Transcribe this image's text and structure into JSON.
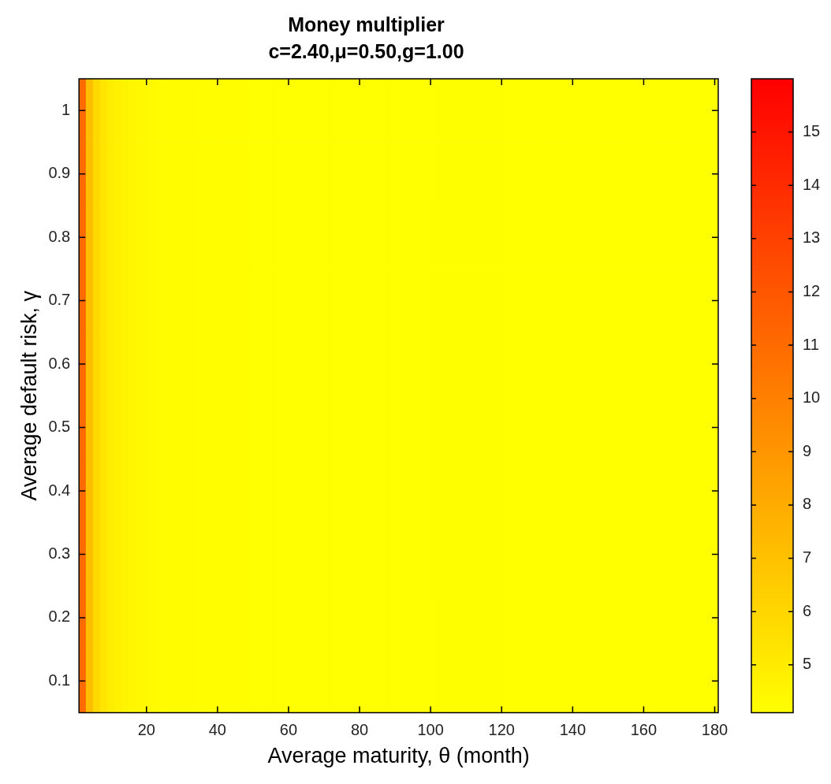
{
  "chart_data": {
    "type": "heatmap",
    "title": "Money multiplier",
    "subtitle": "c=2.40,μ=0.50,g=1.00",
    "xlabel": "Average maturity, θ (month)",
    "ylabel": "Average default risk, γ",
    "categories": [
      null,
      null,
      null,
      null,
      null,
      null,
      null,
      null,
      null,
      "20",
      null,
      null,
      null,
      null,
      null,
      null,
      null,
      null,
      null,
      "40",
      null,
      null,
      null,
      null,
      null,
      null,
      null,
      null,
      null,
      "60",
      null,
      null,
      null,
      null,
      null,
      null,
      null,
      null,
      null,
      "80",
      null,
      null,
      null,
      null,
      null,
      null,
      null,
      null,
      null,
      "100",
      null,
      null,
      null,
      null,
      null,
      null,
      null,
      null,
      null,
      "120",
      null,
      null,
      null,
      null,
      null,
      null,
      null,
      null,
      null,
      "140",
      null,
      null,
      null,
      null,
      null,
      null,
      null,
      null,
      null,
      "160",
      null,
      null,
      null,
      null,
      null,
      null,
      null,
      null,
      null,
      "180"
    ],
    "y_categories": [
      "1",
      "0.9",
      "0.8",
      "0.7",
      "0.6",
      "0.5",
      "0.4",
      "0.3",
      "0.2",
      "0.1"
    ],
    "cells": [
      [
        11,
        7.2,
        5.9,
        5.3,
        4.95,
        4.75,
        4.6,
        4.5,
        4.42,
        4.36,
        4.32,
        4.29,
        4.27,
        4.25,
        4.24,
        4.23,
        4.22,
        4.21,
        4.2,
        4.2,
        4.19,
        4.19,
        4.18,
        4.18,
        4.17,
        4.17,
        4.17,
        4.16,
        4.16,
        4.16,
        4.15,
        4.15,
        4.15,
        4.15,
        4.15,
        4.15,
        4.15,
        4.15,
        4.15,
        4.15,
        4.14,
        4.14,
        4.14,
        4.14,
        4.14,
        4.14,
        4.14,
        4.14,
        4.14,
        4.14,
        4.13,
        4.13,
        4.13,
        4.13,
        4.13,
        4.13,
        4.13,
        4.13,
        4.13,
        4.13,
        4.12,
        4.12,
        4.12,
        4.12,
        4.12,
        4.12,
        4.12,
        4.12,
        4.12,
        4.12,
        4.11,
        4.11,
        4.11,
        4.11,
        4.11,
        4.11,
        4.11,
        4.11,
        4.11,
        4.11,
        4.1,
        4.1,
        4.1,
        4.1,
        4.1,
        4.1,
        4.1,
        4.1,
        4.1,
        4.1
      ],
      [
        11,
        7.2,
        5.9,
        5.3,
        4.95,
        4.75,
        4.6,
        4.5,
        4.42,
        4.36,
        4.32,
        4.29,
        4.27,
        4.25,
        4.24,
        4.23,
        4.22,
        4.21,
        4.2,
        4.2,
        4.19,
        4.19,
        4.18,
        4.18,
        4.17,
        4.17,
        4.17,
        4.16,
        4.16,
        4.16,
        4.15,
        4.15,
        4.15,
        4.15,
        4.15,
        4.15,
        4.15,
        4.15,
        4.15,
        4.15,
        4.14,
        4.14,
        4.14,
        4.14,
        4.14,
        4.14,
        4.14,
        4.14,
        4.14,
        4.14,
        4.13,
        4.13,
        4.13,
        4.13,
        4.13,
        4.13,
        4.13,
        4.13,
        4.13,
        4.13,
        4.12,
        4.12,
        4.12,
        4.12,
        4.12,
        4.12,
        4.12,
        4.12,
        4.12,
        4.12,
        4.11,
        4.11,
        4.11,
        4.11,
        4.11,
        4.11,
        4.11,
        4.11,
        4.11,
        4.11,
        4.1,
        4.1,
        4.1,
        4.1,
        4.1,
        4.1,
        4.1,
        4.1,
        4.1,
        4.1
      ],
      [
        11,
        7.2,
        5.9,
        5.3,
        4.95,
        4.75,
        4.6,
        4.5,
        4.42,
        4.36,
        4.32,
        4.29,
        4.27,
        4.25,
        4.24,
        4.23,
        4.22,
        4.21,
        4.2,
        4.2,
        4.19,
        4.19,
        4.18,
        4.18,
        4.17,
        4.17,
        4.17,
        4.16,
        4.16,
        4.16,
        4.15,
        4.15,
        4.15,
        4.15,
        4.15,
        4.15,
        4.15,
        4.15,
        4.15,
        4.15,
        4.14,
        4.14,
        4.14,
        4.14,
        4.14,
        4.14,
        4.14,
        4.14,
        4.14,
        4.14,
        4.13,
        4.13,
        4.13,
        4.13,
        4.13,
        4.13,
        4.13,
        4.13,
        4.13,
        4.13,
        4.12,
        4.12,
        4.12,
        4.12,
        4.12,
        4.12,
        4.12,
        4.12,
        4.12,
        4.12,
        4.11,
        4.11,
        4.11,
        4.11,
        4.11,
        4.11,
        4.11,
        4.11,
        4.11,
        4.11,
        4.1,
        4.1,
        4.1,
        4.1,
        4.1,
        4.1,
        4.1,
        4.1,
        4.1,
        4.1
      ],
      [
        11,
        7.2,
        5.9,
        5.3,
        4.95,
        4.75,
        4.6,
        4.5,
        4.42,
        4.36,
        4.32,
        4.29,
        4.27,
        4.25,
        4.24,
        4.23,
        4.22,
        4.21,
        4.2,
        4.2,
        4.19,
        4.19,
        4.18,
        4.18,
        4.17,
        4.17,
        4.17,
        4.16,
        4.16,
        4.16,
        4.15,
        4.15,
        4.15,
        4.15,
        4.15,
        4.15,
        4.15,
        4.15,
        4.15,
        4.15,
        4.14,
        4.14,
        4.14,
        4.14,
        4.14,
        4.14,
        4.14,
        4.14,
        4.14,
        4.14,
        4.13,
        4.13,
        4.13,
        4.13,
        4.13,
        4.13,
        4.13,
        4.13,
        4.13,
        4.13,
        4.12,
        4.12,
        4.12,
        4.12,
        4.12,
        4.12,
        4.12,
        4.12,
        4.12,
        4.12,
        4.11,
        4.11,
        4.11,
        4.11,
        4.11,
        4.11,
        4.11,
        4.11,
        4.11,
        4.11,
        4.1,
        4.1,
        4.1,
        4.1,
        4.1,
        4.1,
        4.1,
        4.1,
        4.1,
        4.1
      ],
      [
        11,
        7.2,
        5.9,
        5.3,
        4.95,
        4.75,
        4.6,
        4.5,
        4.42,
        4.36,
        4.32,
        4.29,
        4.27,
        4.25,
        4.24,
        4.23,
        4.22,
        4.21,
        4.2,
        4.2,
        4.19,
        4.19,
        4.18,
        4.18,
        4.17,
        4.17,
        4.17,
        4.16,
        4.16,
        4.16,
        4.15,
        4.15,
        4.15,
        4.15,
        4.15,
        4.15,
        4.15,
        4.15,
        4.15,
        4.15,
        4.14,
        4.14,
        4.14,
        4.14,
        4.14,
        4.14,
        4.14,
        4.14,
        4.14,
        4.14,
        4.13,
        4.13,
        4.13,
        4.13,
        4.13,
        4.13,
        4.13,
        4.13,
        4.13,
        4.13,
        4.12,
        4.12,
        4.12,
        4.12,
        4.12,
        4.12,
        4.12,
        4.12,
        4.12,
        4.12,
        4.11,
        4.11,
        4.11,
        4.11,
        4.11,
        4.11,
        4.11,
        4.11,
        4.11,
        4.11,
        4.1,
        4.1,
        4.1,
        4.1,
        4.1,
        4.1,
        4.1,
        4.1,
        4.1,
        4.1
      ],
      [
        11,
        7.2,
        5.9,
        5.3,
        4.95,
        4.75,
        4.6,
        4.5,
        4.42,
        4.36,
        4.32,
        4.29,
        4.27,
        4.25,
        4.24,
        4.23,
        4.22,
        4.21,
        4.2,
        4.2,
        4.19,
        4.19,
        4.18,
        4.18,
        4.17,
        4.17,
        4.17,
        4.16,
        4.16,
        4.16,
        4.15,
        4.15,
        4.15,
        4.15,
        4.15,
        4.15,
        4.15,
        4.15,
        4.15,
        4.15,
        4.14,
        4.14,
        4.14,
        4.14,
        4.14,
        4.14,
        4.14,
        4.14,
        4.14,
        4.14,
        4.13,
        4.13,
        4.13,
        4.13,
        4.13,
        4.13,
        4.13,
        4.13,
        4.13,
        4.13,
        4.12,
        4.12,
        4.12,
        4.12,
        4.12,
        4.12,
        4.12,
        4.12,
        4.12,
        4.12,
        4.11,
        4.11,
        4.11,
        4.11,
        4.11,
        4.11,
        4.11,
        4.11,
        4.11,
        4.11,
        4.1,
        4.1,
        4.1,
        4.1,
        4.1,
        4.1,
        4.1,
        4.1,
        4.1,
        4.1
      ],
      [
        11,
        7.2,
        5.9,
        5.3,
        4.95,
        4.75,
        4.6,
        4.5,
        4.42,
        4.36,
        4.32,
        4.29,
        4.27,
        4.25,
        4.24,
        4.23,
        4.22,
        4.21,
        4.2,
        4.2,
        4.19,
        4.19,
        4.18,
        4.18,
        4.17,
        4.17,
        4.17,
        4.16,
        4.16,
        4.16,
        4.15,
        4.15,
        4.15,
        4.15,
        4.15,
        4.15,
        4.15,
        4.15,
        4.15,
        4.15,
        4.14,
        4.14,
        4.14,
        4.14,
        4.14,
        4.14,
        4.14,
        4.14,
        4.14,
        4.14,
        4.13,
        4.13,
        4.13,
        4.13,
        4.13,
        4.13,
        4.13,
        4.13,
        4.13,
        4.13,
        4.12,
        4.12,
        4.12,
        4.12,
        4.12,
        4.12,
        4.12,
        4.12,
        4.12,
        4.12,
        4.11,
        4.11,
        4.11,
        4.11,
        4.11,
        4.11,
        4.11,
        4.11,
        4.11,
        4.11,
        4.1,
        4.1,
        4.1,
        4.1,
        4.1,
        4.1,
        4.1,
        4.1,
        4.1,
        4.1
      ],
      [
        11,
        7.2,
        5.9,
        5.3,
        4.95,
        4.75,
        4.6,
        4.5,
        4.42,
        4.36,
        4.32,
        4.29,
        4.27,
        4.25,
        4.24,
        4.23,
        4.22,
        4.21,
        4.2,
        4.2,
        4.19,
        4.19,
        4.18,
        4.18,
        4.17,
        4.17,
        4.17,
        4.16,
        4.16,
        4.16,
        4.15,
        4.15,
        4.15,
        4.15,
        4.15,
        4.15,
        4.15,
        4.15,
        4.15,
        4.15,
        4.14,
        4.14,
        4.14,
        4.14,
        4.14,
        4.14,
        4.14,
        4.14,
        4.14,
        4.14,
        4.13,
        4.13,
        4.13,
        4.13,
        4.13,
        4.13,
        4.13,
        4.13,
        4.13,
        4.13,
        4.12,
        4.12,
        4.12,
        4.12,
        4.12,
        4.12,
        4.12,
        4.12,
        4.12,
        4.12,
        4.11,
        4.11,
        4.11,
        4.11,
        4.11,
        4.11,
        4.11,
        4.11,
        4.11,
        4.11,
        4.1,
        4.1,
        4.1,
        4.1,
        4.1,
        4.1,
        4.1,
        4.1,
        4.1,
        4.1
      ],
      [
        11,
        7.2,
        5.9,
        5.3,
        4.95,
        4.75,
        4.6,
        4.5,
        4.42,
        4.36,
        4.32,
        4.29,
        4.27,
        4.25,
        4.24,
        4.23,
        4.22,
        4.21,
        4.2,
        4.2,
        4.19,
        4.19,
        4.18,
        4.18,
        4.17,
        4.17,
        4.17,
        4.16,
        4.16,
        4.16,
        4.15,
        4.15,
        4.15,
        4.15,
        4.15,
        4.15,
        4.15,
        4.15,
        4.15,
        4.15,
        4.14,
        4.14,
        4.14,
        4.14,
        4.14,
        4.14,
        4.14,
        4.14,
        4.14,
        4.14,
        4.13,
        4.13,
        4.13,
        4.13,
        4.13,
        4.13,
        4.13,
        4.13,
        4.13,
        4.13,
        4.12,
        4.12,
        4.12,
        4.12,
        4.12,
        4.12,
        4.12,
        4.12,
        4.12,
        4.12,
        4.11,
        4.11,
        4.11,
        4.11,
        4.11,
        4.11,
        4.11,
        4.11,
        4.11,
        4.11,
        4.1,
        4.1,
        4.1,
        4.1,
        4.1,
        4.1,
        4.1,
        4.1,
        4.1,
        4.1
      ],
      [
        11,
        7.2,
        5.9,
        5.3,
        4.95,
        4.75,
        4.6,
        4.5,
        4.42,
        4.36,
        4.32,
        4.29,
        4.27,
        4.25,
        4.24,
        4.23,
        4.22,
        4.21,
        4.2,
        4.2,
        4.19,
        4.19,
        4.18,
        4.18,
        4.17,
        4.17,
        4.17,
        4.16,
        4.16,
        4.16,
        4.15,
        4.15,
        4.15,
        4.15,
        4.15,
        4.15,
        4.15,
        4.15,
        4.15,
        4.15,
        4.14,
        4.14,
        4.14,
        4.14,
        4.14,
        4.14,
        4.14,
        4.14,
        4.14,
        4.14,
        4.13,
        4.13,
        4.13,
        4.13,
        4.13,
        4.13,
        4.13,
        4.13,
        4.13,
        4.13,
        4.12,
        4.12,
        4.12,
        4.12,
        4.12,
        4.12,
        4.12,
        4.12,
        4.12,
        4.12,
        4.11,
        4.11,
        4.11,
        4.11,
        4.11,
        4.11,
        4.11,
        4.11,
        4.11,
        4.11,
        4.1,
        4.1,
        4.1,
        4.1,
        4.1,
        4.1,
        4.1,
        4.1,
        4.1,
        4.1
      ]
    ],
    "clim": [
      4.1,
      16
    ],
    "cticks": [
      5,
      6,
      7,
      8,
      9,
      10,
      11,
      12,
      13,
      14,
      15
    ]
  }
}
